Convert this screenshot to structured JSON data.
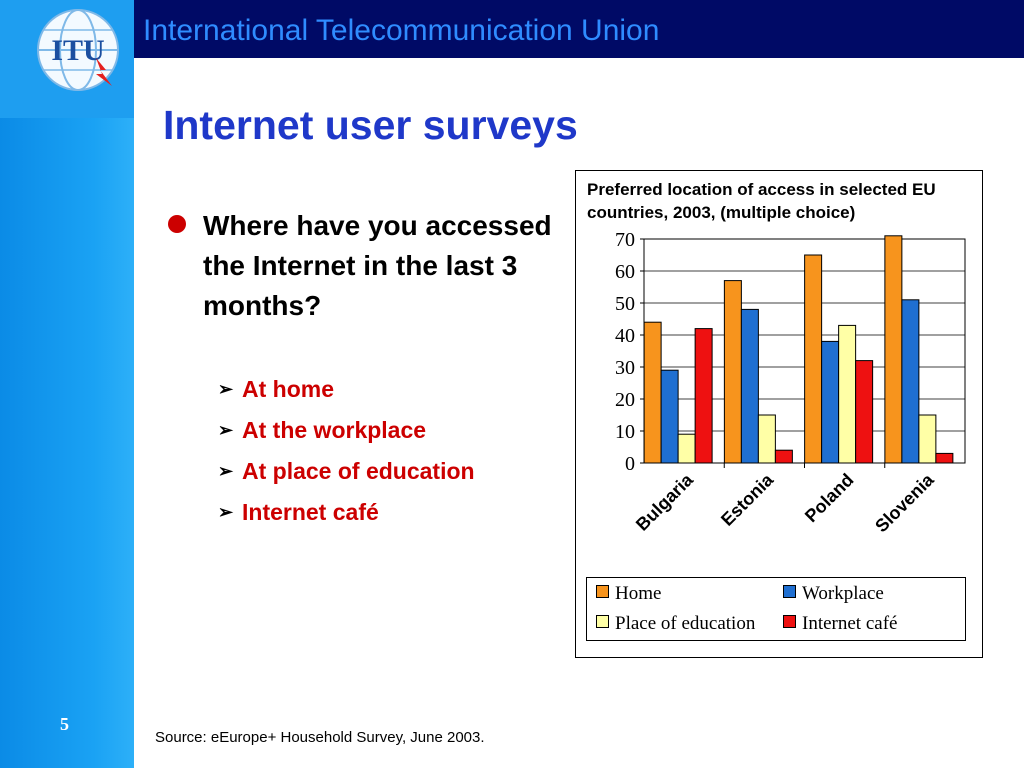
{
  "header": {
    "title": "International Telecommunication Union"
  },
  "logo": {
    "text": "ITU"
  },
  "page": {
    "title": "Internet user surveys",
    "slide_number": "5"
  },
  "bullets": {
    "main": "Where have you accessed the Internet in the last 3 months?",
    "sub": [
      "At home",
      "At the workplace",
      "At place of education",
      "Internet café"
    ]
  },
  "source": "Source: eEurope+ Household Survey, June 2003.",
  "colors": {
    "home": "#f7941d",
    "workplace": "#1f6fd1",
    "education": "#ffffa6",
    "cafe": "#ee1111",
    "header_bg": "#000a66",
    "title": "#1f38c9",
    "accent_red": "#cc0000"
  },
  "chart_data": {
    "type": "bar",
    "title": "Preferred location of access in selected EU countries, 2003, (multiple choice)",
    "categories": [
      "Bulgaria",
      "Estonia",
      "Poland",
      "Slovenia"
    ],
    "ylim": [
      0,
      70
    ],
    "yticks": [
      0,
      10,
      20,
      30,
      40,
      50,
      60,
      70
    ],
    "grid": true,
    "legend_position": "bottom",
    "series": [
      {
        "name": "Home",
        "values": [
          44,
          57,
          65,
          71
        ]
      },
      {
        "name": "Workplace",
        "values": [
          29,
          48,
          38,
          51
        ]
      },
      {
        "name": "Place of education",
        "values": [
          9,
          15,
          43,
          15
        ]
      },
      {
        "name": "Internet café",
        "values": [
          42,
          4,
          32,
          3
        ]
      }
    ]
  }
}
